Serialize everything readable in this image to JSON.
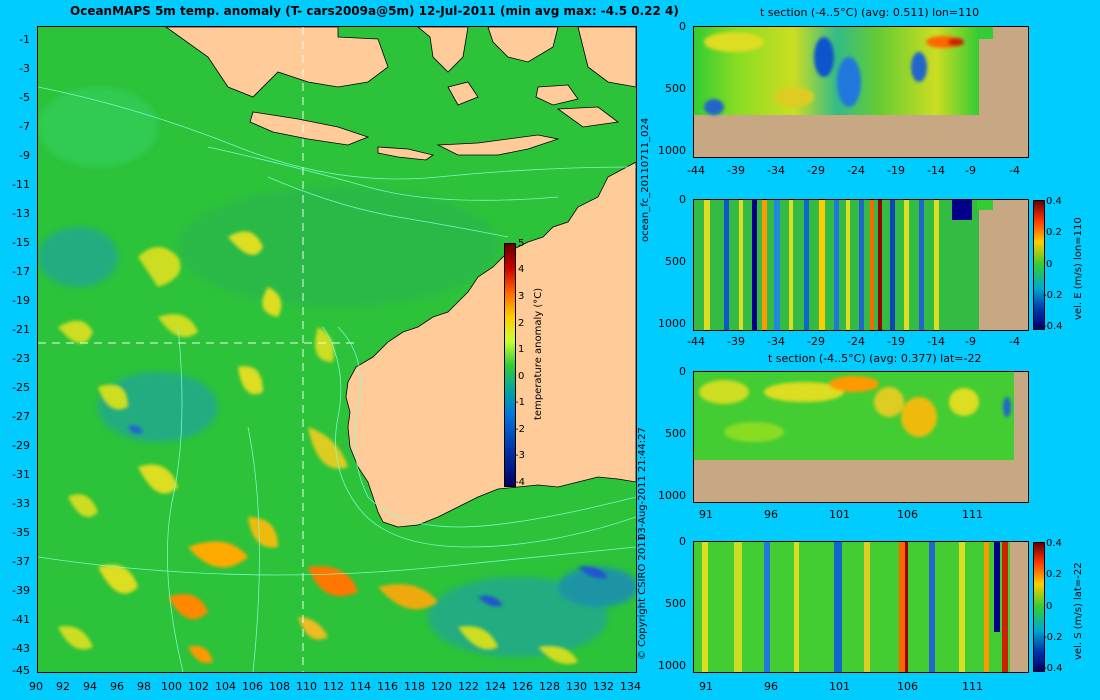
{
  "map": {
    "title": "OceanMAPS 5m temp. anomaly  (T- cars2009a@5m) 12-Jul-2011  (min avg max: -4.5 0.22 4)",
    "lat_ticks": [
      "-1",
      "-3",
      "-5",
      "-7",
      "-9",
      "-11",
      "-13",
      "-15",
      "-17",
      "-19",
      "-21",
      "-23",
      "-25",
      "-27",
      "-29",
      "-31",
      "-33",
      "-35",
      "-37",
      "-39",
      "-41",
      "-43",
      "-45"
    ],
    "lon_ticks": [
      "90",
      "92",
      "94",
      "96",
      "98",
      "100",
      "102",
      "104",
      "106",
      "108",
      "110",
      "112",
      "114",
      "116",
      "118",
      "120",
      "122",
      "124",
      "126",
      "128",
      "130",
      "132",
      "134"
    ],
    "colorbar": {
      "label": "temperature anomaly (°C)",
      "ticks": [
        "5",
        "4",
        "3",
        "2",
        "1",
        "0",
        "-1",
        "-2",
        "-3",
        "-4"
      ]
    },
    "side_label_run": "ocean_fc_20110711_024",
    "side_label_date": "03-Aug-2011 21:44:27",
    "side_label_copy": "© Copyright CSIRO 2011"
  },
  "panel1": {
    "title": "t section (-4..5°C) (avg: 0.511) lon=110",
    "y_ticks": [
      "0",
      "500",
      "1000"
    ],
    "x_ticks": [
      "-44",
      "-39",
      "-34",
      "-29",
      "-24",
      "-19",
      "-14",
      "-9",
      "-4"
    ]
  },
  "panel2": {
    "y_ticks": [
      "0",
      "500",
      "1000"
    ],
    "x_ticks": [
      "-44",
      "-39",
      "-34",
      "-29",
      "-24",
      "-19",
      "-14",
      "-9",
      "-4"
    ],
    "colorbar_label": "vel. E (m/s) lon=110",
    "colorbar_ticks": [
      "0.4",
      "0.2",
      "0",
      "-0.2",
      "-0.4"
    ]
  },
  "panel3": {
    "title": "t section (-4..5°C) (avg: 0.377) lat=-22",
    "y_ticks": [
      "0",
      "500",
      "1000"
    ],
    "x_ticks": [
      "91",
      "96",
      "101",
      "106",
      "111"
    ]
  },
  "panel4": {
    "y_ticks": [
      "0",
      "500",
      "1000"
    ],
    "x_ticks": [
      "91",
      "96",
      "101",
      "106",
      "111"
    ],
    "colorbar_label": "vel. S (m/s) lat=-22",
    "colorbar_ticks": [
      "0.4",
      "0.2",
      "0",
      "-0.2",
      "-0.4"
    ]
  },
  "colors": {
    "background": "#00CCFF",
    "ocean": "#2ABF3A",
    "land": "#FFCC99",
    "section_land": "#C8A882",
    "contour": "#7FFFD4"
  }
}
